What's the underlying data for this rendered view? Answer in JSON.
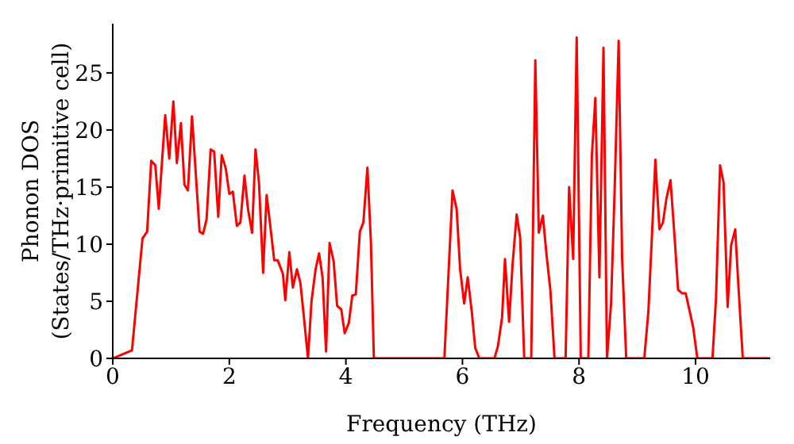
{
  "chart_data": {
    "type": "line",
    "xlabel": "Frequency (THz)",
    "ylabel": "Phonon DOS\n(States/THz·primitive cell)",
    "x": [
      0,
      0.33,
      0.51,
      0.59,
      0.66,
      0.73,
      0.79,
      0.9,
      0.97,
      1.04,
      1.1,
      1.17,
      1.23,
      1.29,
      1.36,
      1.49,
      1.55,
      1.61,
      1.68,
      1.74,
      1.81,
      1.87,
      1.94,
      2.0,
      2.06,
      2.13,
      2.19,
      2.26,
      2.32,
      2.39,
      2.45,
      2.51,
      2.58,
      2.64,
      2.71,
      2.77,
      2.83,
      2.92,
      2.96,
      3.03,
      3.09,
      3.16,
      3.22,
      3.28,
      3.35,
      3.41,
      3.48,
      3.54,
      3.6,
      3.66,
      3.72,
      3.79,
      3.85,
      3.92,
      3.98,
      4.05,
      4.11,
      4.17,
      4.24,
      4.3,
      4.37,
      4.43,
      4.48,
      5.69,
      5.83,
      5.9,
      5.96,
      6.03,
      6.09,
      6.16,
      6.22,
      6.29,
      6.55,
      6.61,
      6.68,
      6.73,
      6.8,
      6.86,
      6.93,
      6.99,
      7.06,
      7.18,
      7.25,
      7.31,
      7.38,
      7.44,
      7.51,
      7.58,
      7.77,
      7.83,
      7.9,
      7.96,
      8.03,
      8.16,
      8.22,
      8.28,
      8.35,
      8.42,
      8.48,
      8.55,
      8.61,
      8.68,
      8.74,
      8.81,
      9.12,
      9.19,
      9.25,
      9.31,
      9.38,
      9.44,
      9.5,
      9.57,
      9.64,
      9.7,
      9.77,
      9.83,
      9.9,
      9.96,
      10.03,
      10.29,
      10.35,
      10.42,
      10.48,
      10.55,
      10.61,
      10.68,
      10.74,
      10.81,
      11.28
    ],
    "values": [
      0,
      0.7,
      10.5,
      11.1,
      17.3,
      16.9,
      13.1,
      21.3,
      17.5,
      22.5,
      17.1,
      20.6,
      15.2,
      14.7,
      21.2,
      11.1,
      10.9,
      12.2,
      18.3,
      18.1,
      12.4,
      17.8,
      16.6,
      14.4,
      14.6,
      11.6,
      11.9,
      16.0,
      13.1,
      11.0,
      18.3,
      15.3,
      7.5,
      14.3,
      11.3,
      8.6,
      8.6,
      7.4,
      5.1,
      9.3,
      6.2,
      7.8,
      6.6,
      3.6,
      0,
      5.0,
      7.8,
      9.2,
      7.1,
      0.6,
      10.1,
      8.5,
      4.6,
      4.3,
      2.2,
      3.1,
      5.5,
      5.6,
      11.1,
      11.9,
      16.7,
      10.1,
      0,
      0,
      14.7,
      13.1,
      7.8,
      4.8,
      7.1,
      4.1,
      0.9,
      0,
      0,
      1.1,
      3.6,
      8.7,
      3.2,
      8.2,
      12.6,
      10.6,
      0,
      0,
      26.1,
      11.0,
      12.5,
      9.2,
      5.9,
      0,
      0,
      15.0,
      8.7,
      28.1,
      0,
      0,
      17.7,
      22.8,
      7.1,
      27.2,
      0,
      4.8,
      14.5,
      27.8,
      8.7,
      0,
      0,
      4.1,
      10.6,
      17.4,
      11.3,
      11.9,
      14.0,
      15.6,
      10.6,
      6.0,
      5.7,
      5.7,
      4.1,
      2.7,
      0,
      0,
      5.2,
      16.9,
      15.4,
      4.5,
      9.9,
      11.3,
      5.9,
      0,
      0
    ],
    "color": "#ff0000",
    "line_style": "solid",
    "marker": "none",
    "xlim": [
      0,
      11.28
    ],
    "xticks": [
      0,
      2,
      4,
      6,
      8,
      10
    ],
    "ylim": [
      0,
      29.3
    ],
    "yticks": [
      0,
      5,
      10,
      15,
      20,
      25
    ]
  }
}
